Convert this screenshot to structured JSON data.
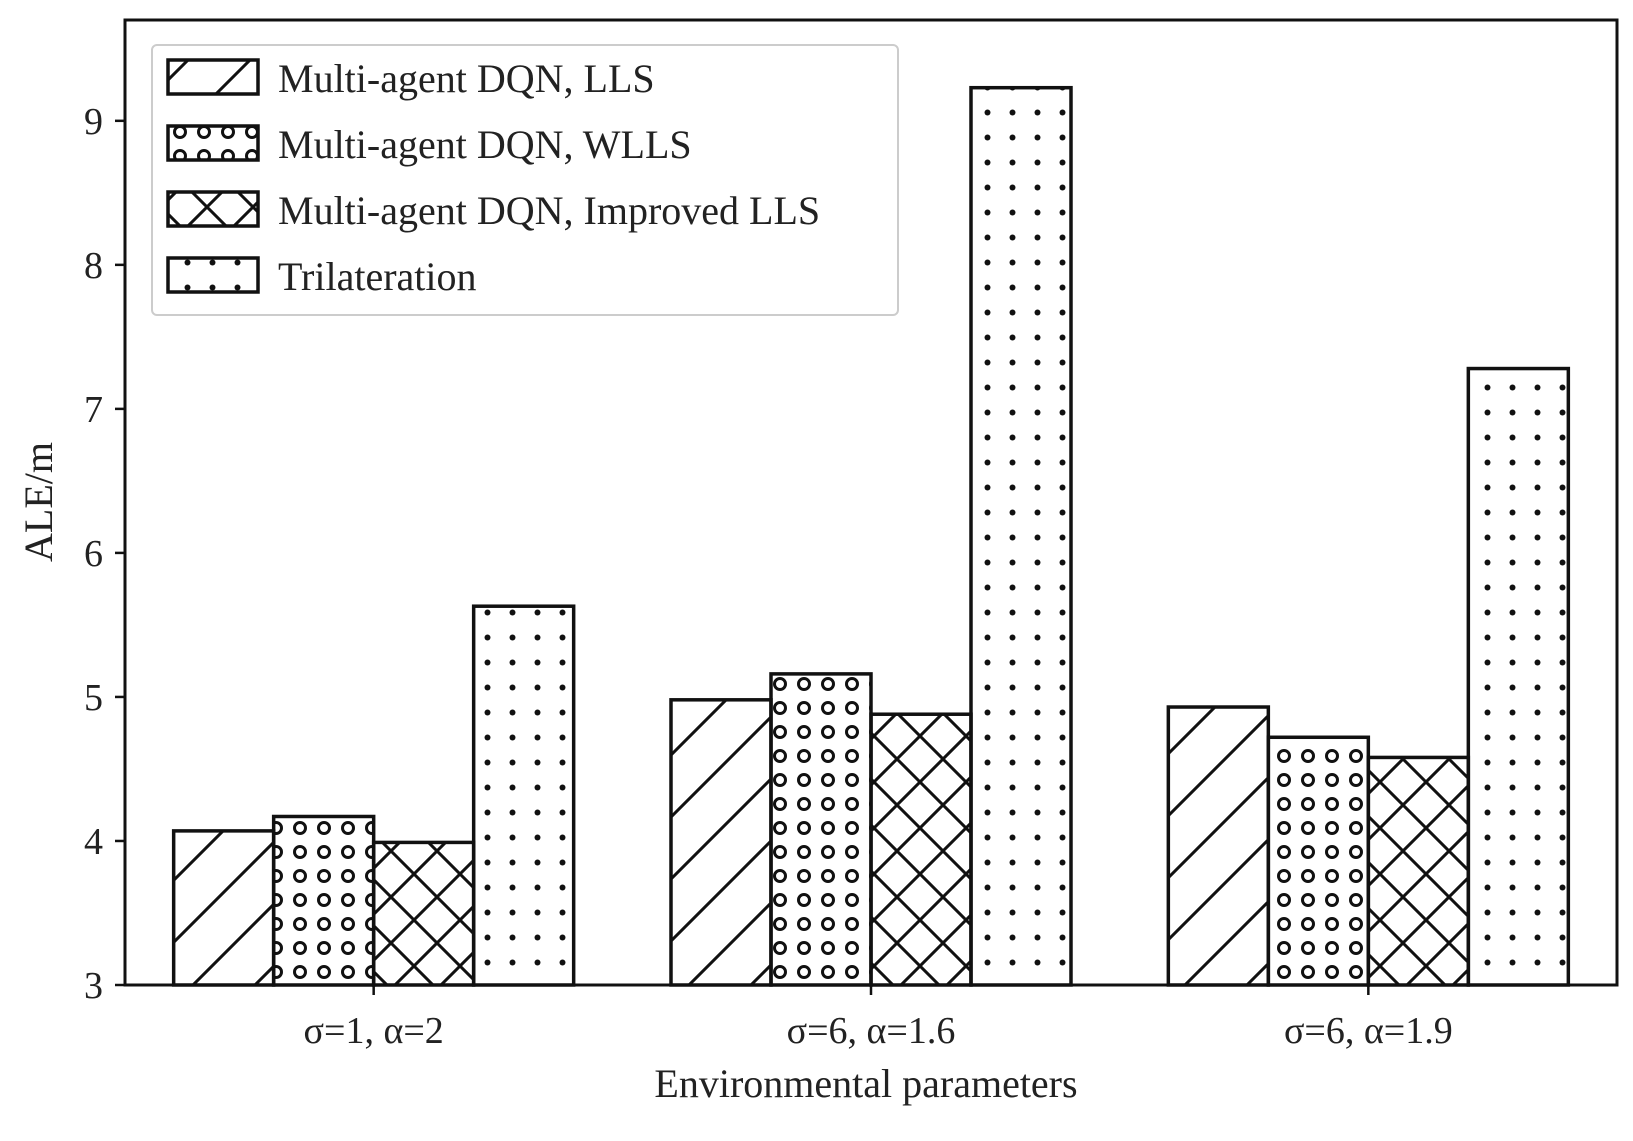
{
  "chart_data": {
    "type": "bar",
    "title": "",
    "xlabel": "Environmental parameters",
    "ylabel": "ALE/m",
    "ylim": [
      3,
      9.7
    ],
    "yticks": [
      "3",
      "4",
      "5",
      "6",
      "7",
      "8",
      "9"
    ],
    "grid": false,
    "legend_position": "top-left",
    "categories": [
      "σ=1, α=2",
      "σ=6, α=1.6",
      "σ=6, α=1.9"
    ],
    "series": [
      {
        "name": "Multi-agent DQN, LLS",
        "pattern": "diagonal-hatch",
        "values": [
          4.07,
          4.98,
          4.93
        ]
      },
      {
        "name": "Multi-agent DQN, WLLS",
        "pattern": "circles",
        "values": [
          4.17,
          5.16,
          4.72
        ]
      },
      {
        "name": "Multi-agent DQN, Improved LLS",
        "pattern": "cross-hatch",
        "values": [
          3.99,
          4.88,
          4.58
        ]
      },
      {
        "name": "Trilateration",
        "pattern": "dots",
        "values": [
          5.63,
          9.23,
          7.28
        ]
      }
    ]
  },
  "colors": {
    "stroke": "#111111",
    "background": "#ffffff",
    "legend_border": "#cccccc"
  }
}
